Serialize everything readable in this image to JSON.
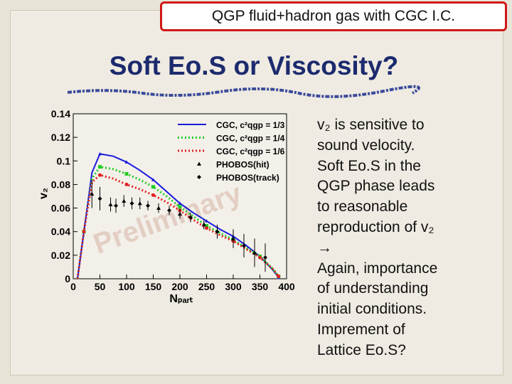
{
  "header": {
    "box_text": "QGP fluid+hadron gas with CGC I.C."
  },
  "title": "Soft Eo.S or Viscosity?",
  "body": {
    "lines": [
      "v₂ is sensitive to",
      "sound velocity.",
      "Soft Eo.S in the",
      "QGP phase leads",
      "to reasonable",
      "reproduction of v₂",
      "→",
      "Again, importance",
      "of understanding",
      "initial conditions.",
      "Imprement of",
      "Lattice Eo.S?"
    ]
  },
  "chart_data": {
    "type": "line",
    "x_label": "Nₚₐᵣₜ",
    "y_label": "v₂",
    "annotation": "Preliminary",
    "xlim": [
      0,
      400
    ],
    "xticks": [
      0,
      50,
      100,
      150,
      200,
      250,
      300,
      350,
      400
    ],
    "ylim": [
      0,
      0.14
    ],
    "yticks": [
      0,
      0.02,
      0.04,
      0.06,
      0.08,
      0.1,
      0.12,
      0.14
    ],
    "legend": "upper right",
    "series": [
      {
        "name": "CGC, c²qgp = 1/3",
        "color": "#1a1adc",
        "line_style": "solid",
        "marker": "triangle",
        "x": [
          8,
          20,
          35,
          50,
          75,
          100,
          125,
          150,
          175,
          200,
          225,
          250,
          275,
          300,
          325,
          350,
          375,
          385
        ],
        "values": [
          0,
          0.04,
          0.09,
          0.106,
          0.104,
          0.099,
          0.092,
          0.084,
          0.074,
          0.064,
          0.056,
          0.049,
          0.042,
          0.036,
          0.028,
          0.019,
          0.007,
          0.001
        ]
      },
      {
        "name": "CGC, c²qgp = 1/4",
        "color": "#22cc22",
        "line_style": "dotted",
        "marker": "square",
        "x": [
          8,
          20,
          35,
          50,
          75,
          100,
          125,
          150,
          175,
          200,
          225,
          250,
          275,
          300,
          325,
          350,
          375,
          385
        ],
        "values": [
          0,
          0.04,
          0.085,
          0.095,
          0.093,
          0.089,
          0.084,
          0.078,
          0.07,
          0.061,
          0.053,
          0.045,
          0.039,
          0.033,
          0.026,
          0.019,
          0.008,
          0.002
        ]
      },
      {
        "name": "CGC, c²qgp = 1/6",
        "color": "#e02020",
        "line_style": "dotted",
        "marker": "circle",
        "x": [
          8,
          20,
          35,
          50,
          75,
          100,
          125,
          150,
          175,
          200,
          225,
          250,
          275,
          300,
          325,
          350,
          375,
          385
        ],
        "values": [
          0,
          0.04,
          0.082,
          0.088,
          0.085,
          0.08,
          0.076,
          0.071,
          0.065,
          0.058,
          0.05,
          0.043,
          0.037,
          0.032,
          0.025,
          0.018,
          0.008,
          0.002
        ]
      },
      {
        "name": "PHOBOS(hit)",
        "color": "#000000",
        "line_style": "none",
        "marker": "triangle",
        "x": [
          35,
          70,
          95,
          125,
          160,
          200,
          245,
          300,
          340
        ],
        "values": [
          0.072,
          0.063,
          0.066,
          0.064,
          0.06,
          0.055,
          0.046,
          0.034,
          0.022
        ],
        "errors": [
          0.012,
          0.006,
          0.005,
          0.005,
          0.004,
          0.004,
          0.004,
          0.008,
          0.012
        ]
      },
      {
        "name": "PHOBOS(track)",
        "color": "#000000",
        "line_style": "none",
        "marker": "diamond",
        "x": [
          50,
          80,
          110,
          140,
          180,
          220,
          270,
          320,
          360
        ],
        "values": [
          0.068,
          0.062,
          0.064,
          0.062,
          0.058,
          0.052,
          0.04,
          0.028,
          0.018
        ],
        "errors": [
          0.01,
          0.006,
          0.005,
          0.004,
          0.004,
          0.004,
          0.006,
          0.01,
          0.012
        ]
      }
    ]
  }
}
